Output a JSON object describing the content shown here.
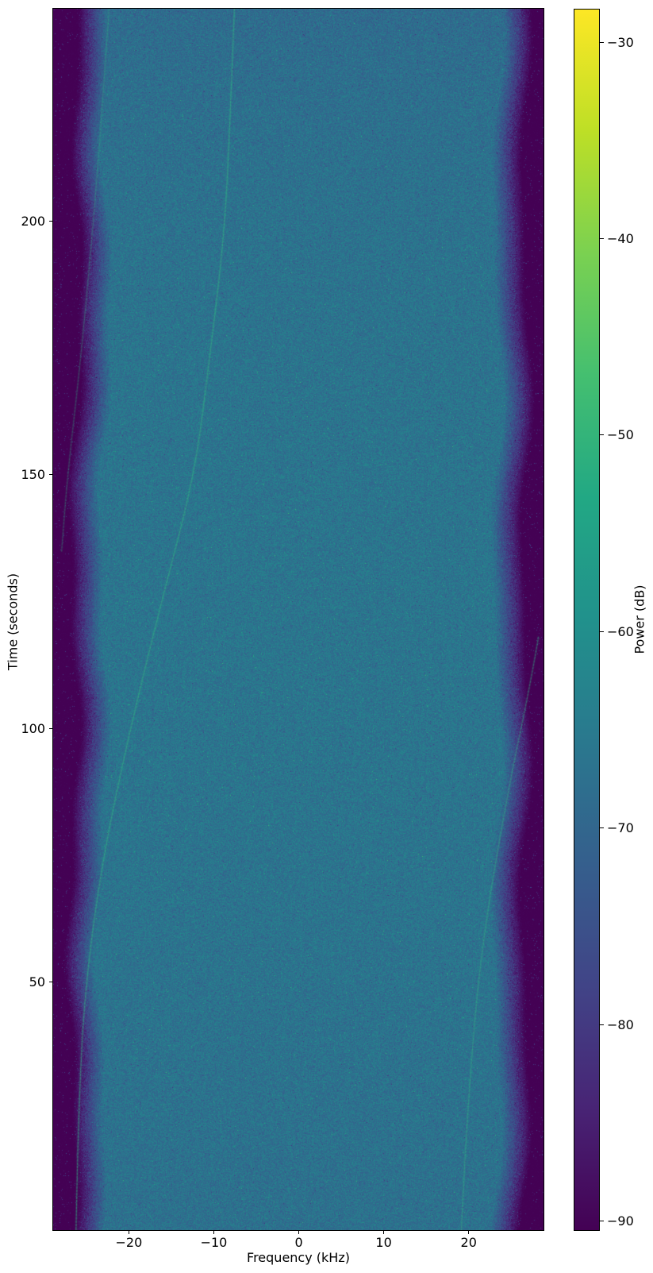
{
  "chart_data": {
    "type": "heatmap",
    "title": "",
    "xlabel": "Frequency (kHz)",
    "ylabel": "Time (seconds)",
    "xlim": [
      -29.0,
      28.9
    ],
    "ylim": [
      1,
      242
    ],
    "xticks": {
      "values": [
        -20,
        -10,
        0,
        10,
        20
      ],
      "labels": [
        "−20",
        "−10",
        "0",
        "10",
        "20"
      ]
    },
    "yticks": {
      "values": [
        50,
        100,
        150,
        200
      ],
      "labels": [
        "50",
        "100",
        "150",
        "200"
      ]
    },
    "colorbar": {
      "label": "Power (dB)",
      "colormap": "viridis",
      "vmin": -90.5,
      "vmax": -28.3,
      "ticks": {
        "values": [
          -30,
          -40,
          -50,
          -60,
          -70,
          -80,
          -90
        ],
        "labels": [
          "−30",
          "−40",
          "−50",
          "−60",
          "−70",
          "−80",
          "−90"
        ]
      }
    },
    "background": {
      "noise_floor_db": -67.5,
      "edge_floor_db": -91.5,
      "left_edge_khz": 23.0,
      "right_edge_khz": 23.4,
      "rolloff_db_per_khz": 6.8,
      "noise_amplitude_db": 4.6
    },
    "viridis_stops": [
      "#440154",
      "#482475",
      "#414487",
      "#355f8d",
      "#2a788e",
      "#21918c",
      "#22a884",
      "#44bf70",
      "#7ad151",
      "#bddf26",
      "#fde725"
    ],
    "trace_color": "#35b285",
    "traces": [
      {
        "name": "left-doppler-trace",
        "alpha": 0.32,
        "points": [
          [
            -22.4,
            242
          ],
          [
            -23.3,
            220
          ],
          [
            -24.4,
            197
          ],
          [
            -25.8,
            172
          ],
          [
            -27.3,
            150
          ],
          [
            -28.0,
            135
          ]
        ]
      },
      {
        "name": "center-doppler-trace",
        "alpha": 0.55,
        "points": [
          [
            -7.6,
            242
          ],
          [
            -8.1,
            220
          ],
          [
            -8.8,
            197
          ],
          [
            -10.6,
            172
          ],
          [
            -12.3,
            150
          ],
          [
            -16.2,
            125
          ],
          [
            -19.9,
            100
          ],
          [
            -23.2,
            74
          ],
          [
            -25.3,
            48
          ],
          [
            -26.0,
            24
          ],
          [
            -26.3,
            1
          ]
        ]
      },
      {
        "name": "right-doppler-trace",
        "alpha": 0.45,
        "points": [
          [
            28.3,
            118
          ],
          [
            27.5,
            110
          ],
          [
            24.5,
            86
          ],
          [
            21.4,
            55
          ],
          [
            19.9,
            24
          ],
          [
            19.2,
            1
          ]
        ]
      }
    ]
  }
}
